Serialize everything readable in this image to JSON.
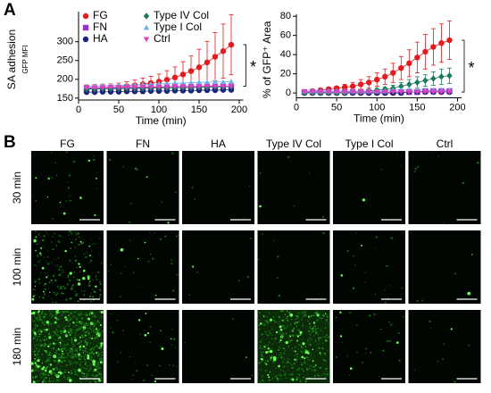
{
  "panel_a_label": "A",
  "chart_data": [
    {
      "type": "line",
      "ylabel": "SA adhesion",
      "ysublabel": "GFP MFI",
      "xlabel": "Time (min)",
      "x": [
        10,
        20,
        30,
        40,
        50,
        60,
        70,
        80,
        90,
        100,
        110,
        120,
        130,
        140,
        150,
        160,
        170,
        180,
        190
      ],
      "xlim": [
        0,
        205
      ],
      "xticks": [
        0,
        50,
        100,
        150,
        200
      ],
      "ylim": [
        145,
        380
      ],
      "yticks": [
        150,
        200,
        250,
        300
      ],
      "legend": true,
      "annotation": "*",
      "series": [
        {
          "name": "FG",
          "color": "#e41a1c",
          "marker": "circle",
          "values": [
            175,
            176,
            177,
            178,
            180,
            182,
            184,
            187,
            190,
            194,
            199,
            205,
            213,
            222,
            232,
            245,
            260,
            275,
            292
          ],
          "errors": [
            10,
            10,
            10,
            10,
            10,
            12,
            14,
            16,
            18,
            20,
            24,
            28,
            34,
            40,
            48,
            56,
            64,
            72,
            80
          ]
        },
        {
          "name": "FN",
          "color": "#9b30d9",
          "marker": "square",
          "values": [
            176,
            176,
            177,
            177,
            177,
            178,
            178,
            178,
            179,
            179,
            179,
            180,
            180,
            180,
            181,
            181,
            181,
            182,
            182
          ]
        },
        {
          "name": "HA",
          "color": "#1a237e",
          "marker": "circle",
          "values": [
            166,
            166,
            167,
            167,
            167,
            168,
            168,
            168,
            169,
            169,
            169,
            170,
            170,
            170,
            171,
            171,
            171,
            172,
            172
          ]
        },
        {
          "name": "Type IV Col",
          "color": "#1b7a5a",
          "marker": "diamond",
          "values": [
            174,
            174,
            175,
            175,
            175,
            176,
            176,
            176,
            177,
            177,
            177,
            178,
            178,
            178,
            179,
            179,
            180,
            180,
            181
          ]
        },
        {
          "name": "Type I Col",
          "color": "#6ab4e8",
          "marker": "triangle",
          "values": [
            182,
            182,
            183,
            183,
            184,
            184,
            185,
            186,
            187,
            188,
            189,
            190,
            190,
            191,
            192,
            192,
            193,
            193,
            194
          ]
        },
        {
          "name": "Ctrl",
          "color": "#e040c0",
          "marker": "triangle-down",
          "values": [
            178,
            178,
            178,
            179,
            179,
            179,
            179,
            180,
            180,
            180,
            180,
            181,
            181,
            181,
            181,
            182,
            182,
            182,
            182
          ]
        }
      ]
    },
    {
      "type": "line",
      "ylabel": "% of GFP⁺ Area",
      "xlabel": "Time (min)",
      "x": [
        10,
        20,
        30,
        40,
        50,
        60,
        70,
        80,
        90,
        100,
        110,
        120,
        130,
        140,
        150,
        160,
        170,
        180,
        190
      ],
      "xlim": [
        0,
        205
      ],
      "xticks": [
        0,
        50,
        100,
        150,
        200
      ],
      "ylim": [
        -5,
        82
      ],
      "yticks": [
        0,
        20,
        40,
        60,
        80
      ],
      "legend": false,
      "annotation": "*",
      "series": [
        {
          "color": "#e41a1c",
          "marker": "circle",
          "values": [
            1,
            2,
            3,
            4,
            5,
            6,
            7,
            9,
            11,
            14,
            17,
            21,
            26,
            31,
            37,
            43,
            48,
            52,
            55
          ],
          "errors": [
            1,
            1,
            1,
            2,
            2,
            3,
            4,
            5,
            6,
            7,
            8,
            10,
            12,
            14,
            16,
            18,
            19,
            20,
            20
          ]
        },
        {
          "color": "#9b30d9",
          "marker": "square",
          "values": [
            1,
            1,
            1,
            1,
            1,
            1,
            1,
            1,
            1,
            1,
            1,
            1,
            1,
            1,
            1,
            2,
            2,
            2,
            2
          ]
        },
        {
          "color": "#1a237e",
          "marker": "circle",
          "values": [
            0,
            0,
            0,
            0,
            0,
            0,
            0,
            0,
            0,
            0,
            0,
            0,
            0,
            1,
            1,
            1,
            1,
            1,
            1
          ]
        },
        {
          "color": "#1b7a5a",
          "marker": "diamond",
          "values": [
            0,
            0,
            0,
            0,
            0,
            0,
            1,
            1,
            2,
            3,
            4,
            5,
            7,
            9,
            11,
            13,
            15,
            17,
            18
          ],
          "errors": [
            0,
            0,
            0,
            0,
            0,
            0,
            1,
            1,
            1,
            2,
            2,
            3,
            4,
            5,
            6,
            6,
            7,
            8,
            8
          ]
        },
        {
          "color": "#6ab4e8",
          "marker": "triangle",
          "values": [
            2,
            2,
            2,
            2,
            2,
            2,
            2,
            2,
            2,
            2,
            2,
            3,
            3,
            3,
            3,
            3,
            3,
            3,
            3
          ]
        },
        {
          "color": "#e040c0",
          "marker": "triangle-down",
          "values": [
            1,
            1,
            1,
            1,
            1,
            1,
            1,
            1,
            1,
            1,
            1,
            1,
            1,
            1,
            1,
            1,
            1,
            1,
            1
          ]
        }
      ]
    }
  ],
  "panel_b": {
    "label": "B",
    "columns": [
      "FG",
      "FN",
      "HA",
      "Type IV Col",
      "Type I Col",
      "Ctrl"
    ],
    "rows": [
      "30 min",
      "100 min",
      "180 min"
    ]
  }
}
